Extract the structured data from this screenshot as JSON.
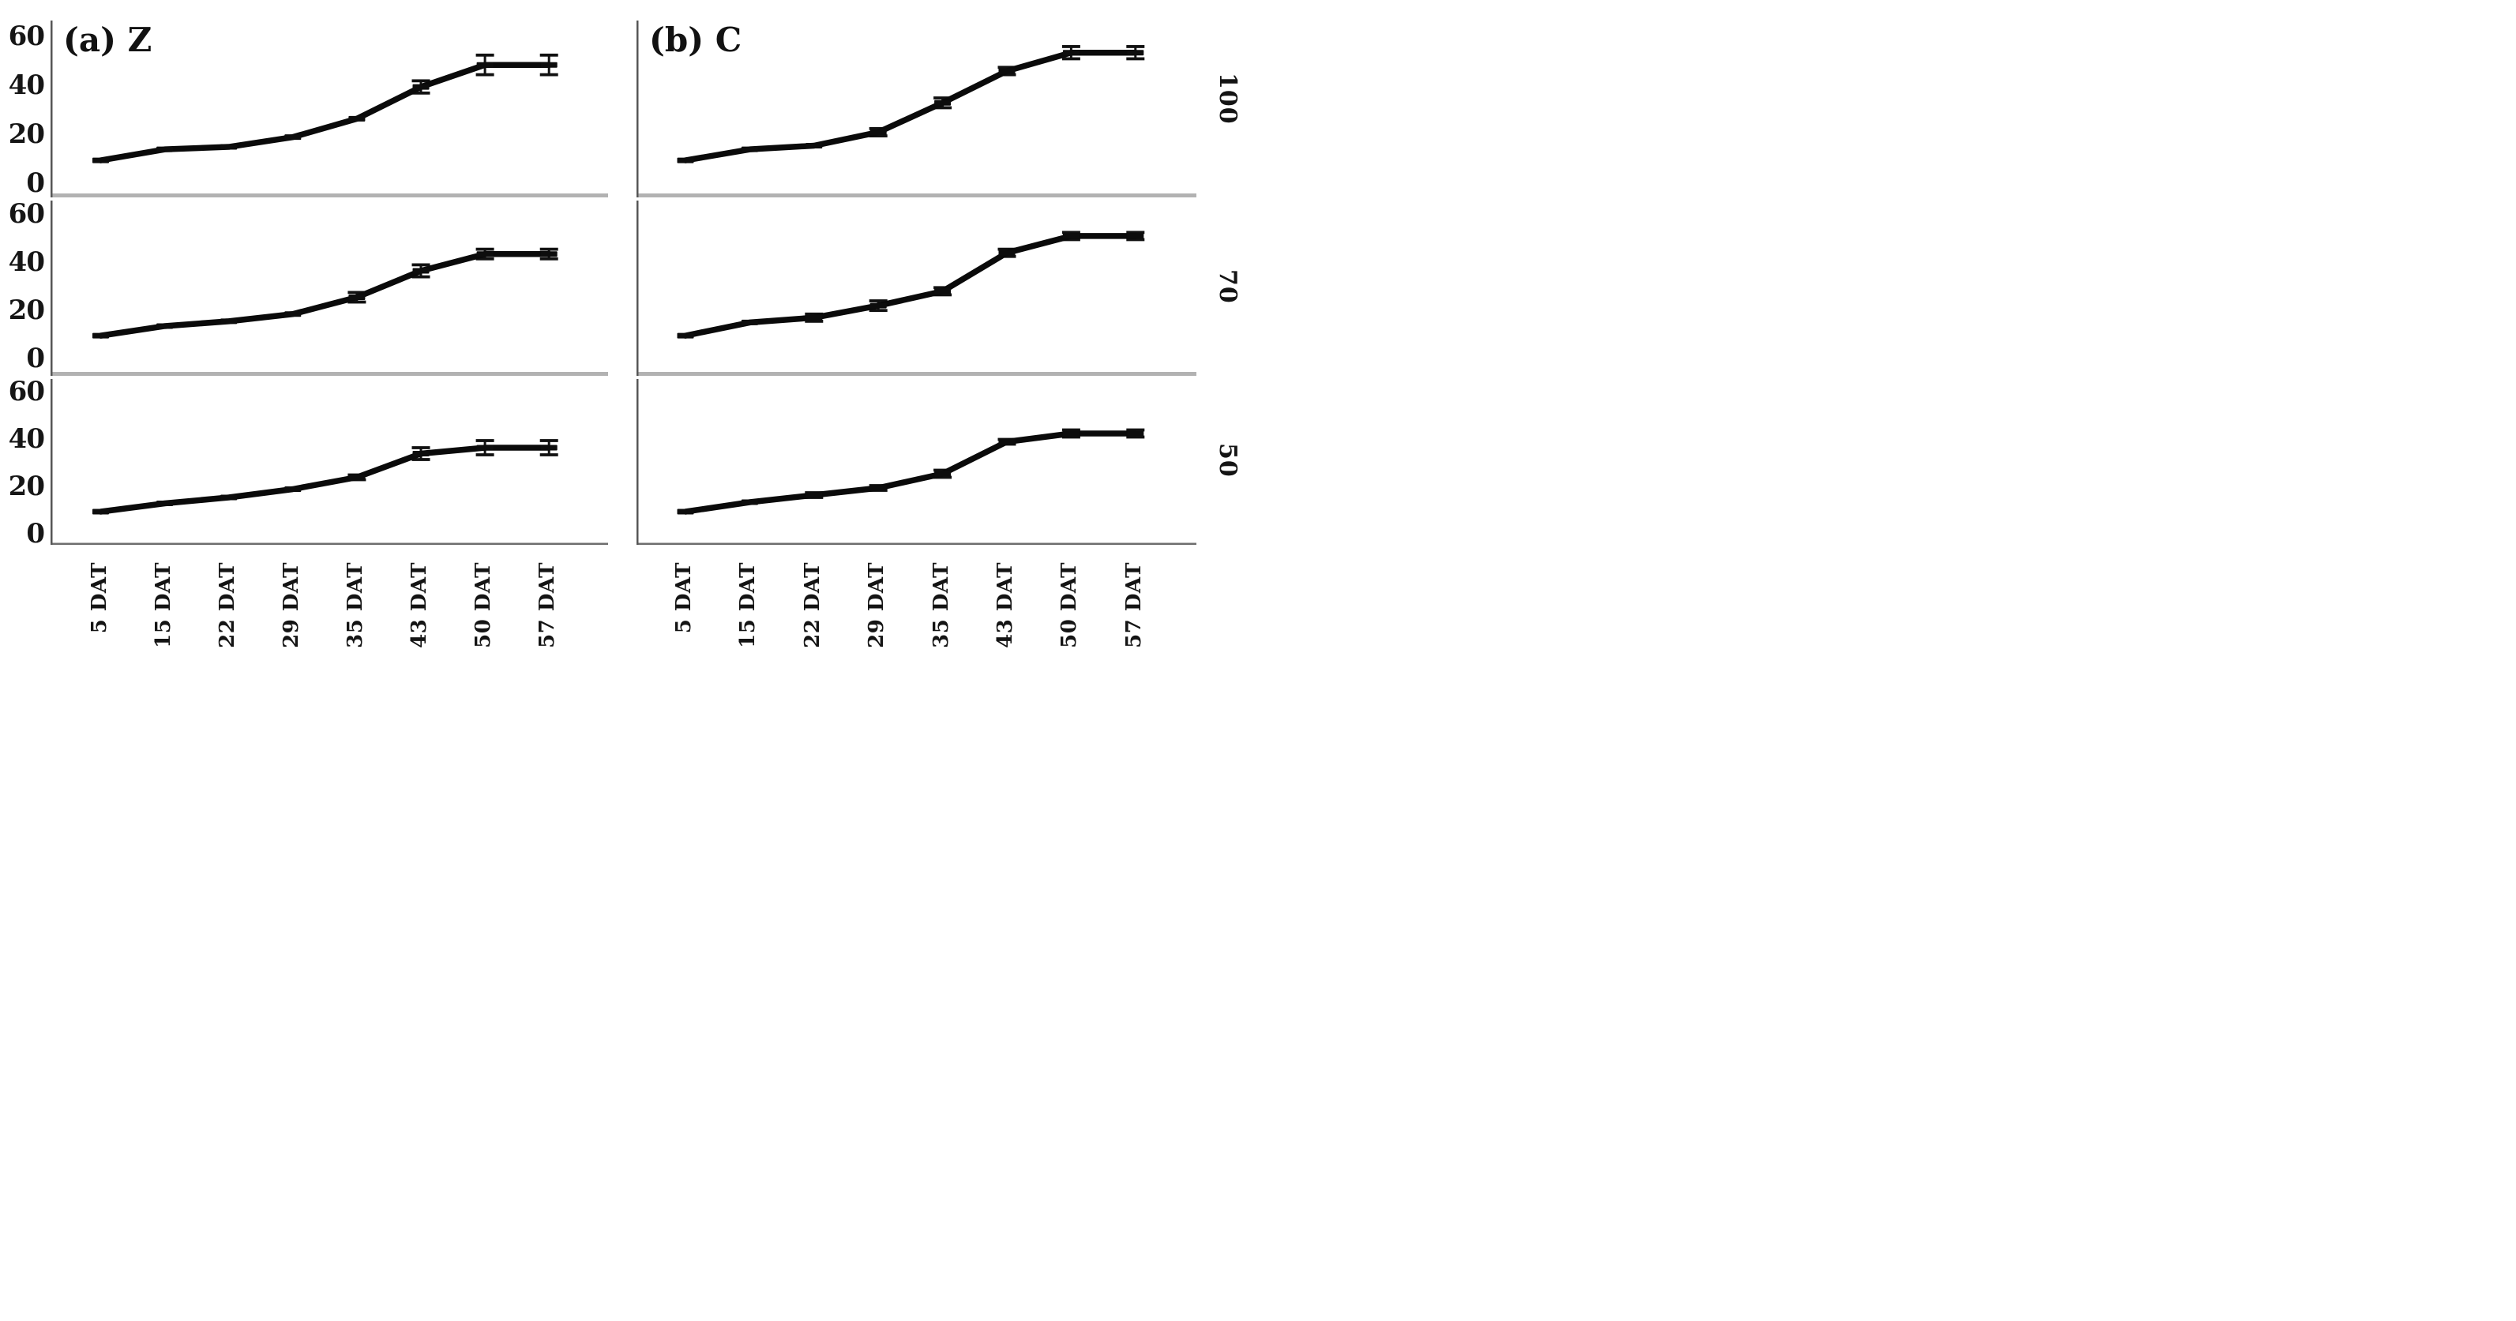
{
  "columns": [
    {
      "key": "a",
      "title": "(a) Z"
    },
    {
      "key": "b",
      "title": "(b) C"
    }
  ],
  "row_sections": [
    {
      "label": "100"
    },
    {
      "label": "70"
    },
    {
      "label": "50"
    }
  ],
  "x_categories": [
    "5 DAT",
    "15 DAT",
    "22 DAT",
    "29 DAT",
    "35 DAT",
    "43 DAT",
    "50 DAT",
    "57 DAT"
  ],
  "y_ticks": [
    "60",
    "40",
    "20",
    "0"
  ],
  "colors": {
    "line": "#0a0a0a",
    "marker": "#0d0d0d",
    "error_bar": "#111111",
    "axis_line": "#565656",
    "row_separator": "#b2b2b2",
    "bottom_axis": "#6e6e6e",
    "text": "#141414"
  },
  "chart_data": [
    {
      "type": "line",
      "panel": "a",
      "panel_title": "(a) Z",
      "row_label": "100",
      "row_index": 0,
      "categories": [
        "5 DAT",
        "15 DAT",
        "22 DAT",
        "29 DAT",
        "35 DAT",
        "43 DAT",
        "50 DAT",
        "57 DAT"
      ],
      "values": [
        9,
        13.5,
        14.5,
        18.5,
        26,
        39,
        48,
        48
      ],
      "errors": [
        0,
        0,
        0,
        0,
        0,
        2.5,
        4,
        4
      ],
      "ylim": [
        0,
        60
      ],
      "yticks": [
        0,
        20,
        40,
        60
      ],
      "grid": false,
      "legend": null
    },
    {
      "type": "line",
      "panel": "b",
      "panel_title": "(b) C",
      "row_label": "100",
      "row_index": 0,
      "categories": [
        "5 DAT",
        "15 DAT",
        "22 DAT",
        "29 DAT",
        "35 DAT",
        "43 DAT",
        "50 DAT",
        "57 DAT"
      ],
      "values": [
        9,
        13.5,
        15,
        20.5,
        32.5,
        45.5,
        53,
        53
      ],
      "errors": [
        0,
        0,
        0,
        1.5,
        2,
        1.5,
        2.5,
        2.5
      ],
      "ylim": [
        0,
        60
      ],
      "yticks": [
        0,
        20,
        40,
        60
      ],
      "grid": false,
      "legend": null
    },
    {
      "type": "line",
      "panel": "a",
      "panel_title": "(a) Z",
      "row_label": "70",
      "row_index": 1,
      "categories": [
        "5 DAT",
        "15 DAT",
        "22 DAT",
        "29 DAT",
        "35 DAT",
        "43 DAT",
        "50 DAT",
        "57 DAT"
      ],
      "values": [
        9,
        13,
        15,
        18,
        25,
        36,
        43,
        43
      ],
      "errors": [
        0,
        0,
        0,
        0,
        2,
        2.5,
        2,
        2
      ],
      "ylim": [
        0,
        60
      ],
      "yticks": [
        0,
        20,
        40,
        60
      ],
      "grid": false,
      "legend": null
    },
    {
      "type": "line",
      "panel": "b",
      "panel_title": "(b) C",
      "row_label": "70",
      "row_index": 1,
      "categories": [
        "5 DAT",
        "15 DAT",
        "22 DAT",
        "29 DAT",
        "35 DAT",
        "43 DAT",
        "50 DAT",
        "57 DAT"
      ],
      "values": [
        9,
        14.5,
        16.5,
        21.5,
        27.5,
        43.5,
        50.5,
        50.5
      ],
      "errors": [
        0,
        0,
        1.5,
        2,
        1.5,
        1.5,
        1.5,
        1.5
      ],
      "ylim": [
        0,
        60
      ],
      "yticks": [
        0,
        20,
        40,
        60
      ],
      "grid": false,
      "legend": null
    },
    {
      "type": "line",
      "panel": "a",
      "panel_title": "(a) Z",
      "row_label": "50",
      "row_index": 2,
      "categories": [
        "5 DAT",
        "15 DAT",
        "22 DAT",
        "29 DAT",
        "35 DAT",
        "43 DAT",
        "50 DAT",
        "57 DAT"
      ],
      "values": [
        9,
        12.5,
        15,
        18.5,
        23.5,
        33.5,
        36,
        36
      ],
      "errors": [
        0,
        0,
        0,
        0,
        1,
        2.5,
        3,
        3
      ],
      "ylim": [
        0,
        60
      ],
      "yticks": [
        0,
        20,
        40,
        60
      ],
      "grid": false,
      "legend": null
    },
    {
      "type": "line",
      "panel": "b",
      "panel_title": "(b) C",
      "row_label": "50",
      "row_index": 2,
      "categories": [
        "5 DAT",
        "15 DAT",
        "22 DAT",
        "29 DAT",
        "35 DAT",
        "43 DAT",
        "50 DAT",
        "57 DAT"
      ],
      "values": [
        9,
        13,
        16,
        19,
        25,
        38.5,
        42,
        42
      ],
      "errors": [
        0,
        0,
        1,
        1,
        1.5,
        1,
        1.5,
        1.5
      ],
      "ylim": [
        0,
        60
      ],
      "yticks": [
        0,
        20,
        40,
        60
      ],
      "grid": false,
      "legend": null
    }
  ]
}
